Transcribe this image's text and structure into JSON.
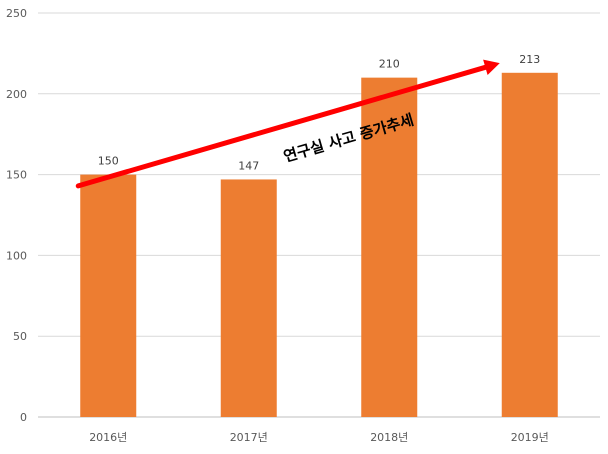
{
  "chart_data": {
    "type": "bar",
    "categories": [
      "2016년",
      "2017년",
      "2018년",
      "2019년"
    ],
    "values": [
      150,
      147,
      210,
      213
    ],
    "data_labels": [
      "150",
      "147",
      "210",
      "213"
    ],
    "title": "",
    "xlabel": "",
    "ylabel": "",
    "ylim": [
      0,
      250
    ],
    "yticks": [
      "0",
      "50",
      "100",
      "150",
      "200",
      "250"
    ],
    "grid": true,
    "legend": "none",
    "bar_color": "#ED7D31",
    "grid_color": "#D9D9D9",
    "annotation": {
      "text": "연구실 사고 증가추세",
      "arrow_color": "#FF0000",
      "arrow_from": {
        "category": "2016년",
        "value": 143
      },
      "arrow_to": {
        "category": "2019년",
        "value": 219
      }
    }
  }
}
